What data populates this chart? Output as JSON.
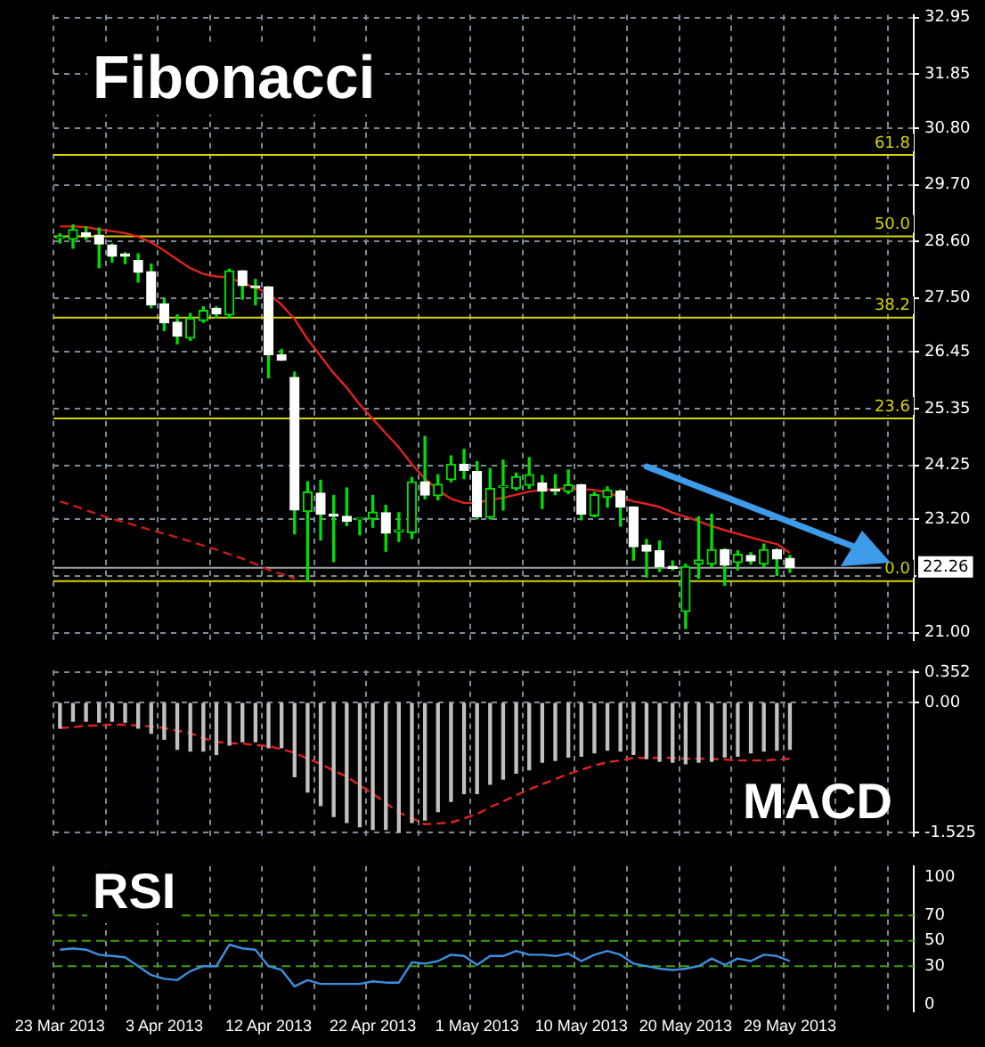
{
  "chart_data": [
    {
      "type": "candlestick",
      "title": "Fibonacci",
      "categories": [
        null,
        null,
        null,
        null,
        null,
        null,
        null,
        null,
        null,
        null,
        null,
        null,
        null,
        null,
        null,
        null,
        null,
        null,
        null,
        null,
        null,
        null,
        null,
        null,
        null,
        null,
        null,
        null,
        null,
        null,
        null,
        null,
        null,
        null,
        null,
        null,
        null,
        null,
        null,
        null,
        null,
        null,
        null,
        null,
        null,
        null,
        null,
        null,
        null,
        null,
        null,
        null,
        null,
        null,
        null,
        null,
        null,
        null,
        null,
        null,
        null,
        null,
        null,
        null,
        null,
        null
      ],
      "ohlc": [
        [
          28.66,
          28.75,
          28.57,
          28.66
        ],
        [
          28.64,
          28.92,
          28.47,
          28.83
        ],
        [
          28.77,
          28.88,
          28.64,
          28.69
        ],
        [
          28.72,
          28.86,
          28.09,
          28.55
        ],
        [
          28.53,
          28.55,
          28.2,
          28.31
        ],
        [
          28.36,
          28.38,
          28.17,
          28.31
        ],
        [
          28.23,
          28.36,
          27.81,
          28.0
        ],
        [
          28.01,
          28.16,
          27.31,
          27.37
        ],
        [
          27.39,
          27.48,
          26.87,
          27.02
        ],
        [
          27.03,
          27.17,
          26.61,
          26.76
        ],
        [
          26.72,
          27.2,
          26.68,
          27.11
        ],
        [
          27.06,
          27.33,
          27.03,
          27.26
        ],
        [
          27.3,
          27.33,
          27.12,
          27.19
        ],
        [
          27.17,
          28.06,
          27.12,
          28.03
        ],
        [
          28.03,
          28.03,
          27.48,
          27.74
        ],
        [
          27.72,
          27.86,
          27.37,
          27.7
        ],
        [
          27.72,
          27.72,
          25.95,
          26.4
        ],
        [
          26.4,
          26.5,
          26.29,
          26.29
        ],
        [
          25.96,
          26.06,
          22.92,
          23.38
        ],
        [
          23.35,
          23.93,
          22.0,
          23.73
        ],
        [
          23.71,
          23.96,
          22.8,
          23.3
        ],
        [
          23.3,
          23.66,
          22.38,
          23.26
        ],
        [
          23.26,
          23.81,
          23.08,
          23.16
        ],
        [
          23.19,
          23.21,
          22.9,
          23.19
        ],
        [
          23.21,
          23.66,
          23.05,
          23.34
        ],
        [
          23.33,
          23.47,
          22.58,
          22.93
        ],
        [
          22.96,
          23.33,
          22.77,
          22.96
        ],
        [
          22.94,
          24.01,
          22.83,
          23.93
        ],
        [
          23.93,
          24.81,
          23.6,
          23.67
        ],
        [
          23.66,
          24.07,
          23.58,
          23.88
        ],
        [
          23.97,
          24.43,
          23.93,
          24.27
        ],
        [
          24.27,
          24.56,
          23.99,
          24.15
        ],
        [
          24.13,
          24.32,
          23.21,
          23.25
        ],
        [
          23.24,
          24.19,
          23.21,
          23.8
        ],
        [
          23.82,
          24.35,
          23.38,
          23.82
        ],
        [
          23.8,
          24.1,
          23.77,
          24.03
        ],
        [
          23.86,
          24.4,
          23.8,
          24.07
        ],
        [
          23.91,
          24.05,
          23.41,
          23.75
        ],
        [
          23.77,
          24.07,
          23.68,
          23.75
        ],
        [
          23.74,
          24.16,
          23.7,
          23.87
        ],
        [
          23.87,
          23.88,
          23.19,
          23.3
        ],
        [
          23.27,
          23.72,
          23.25,
          23.68
        ],
        [
          23.63,
          23.83,
          23.44,
          23.77
        ],
        [
          23.75,
          23.77,
          23.07,
          23.44
        ],
        [
          23.44,
          23.44,
          22.41,
          22.67
        ],
        [
          22.7,
          22.81,
          22.08,
          22.58
        ],
        [
          22.59,
          22.78,
          22.19,
          22.28
        ],
        [
          22.28,
          22.39,
          22.22,
          22.25
        ],
        [
          21.41,
          22.33,
          21.08,
          22.28
        ],
        [
          22.33,
          23.25,
          22.06,
          22.41
        ],
        [
          22.33,
          23.3,
          22.28,
          22.61
        ],
        [
          22.61,
          22.63,
          21.92,
          22.31
        ],
        [
          22.36,
          22.59,
          22.22,
          22.52
        ],
        [
          22.5,
          22.55,
          22.33,
          22.39
        ],
        [
          22.33,
          22.72,
          22.28,
          22.61
        ],
        [
          22.61,
          22.63,
          22.11,
          22.43
        ],
        [
          22.44,
          22.5,
          22.17,
          22.26
        ],
        null,
        null,
        null,
        null,
        null,
        null,
        null,
        null,
        null
      ],
      "series": [
        {
          "type": "line",
          "color": "#e0231b",
          "values": [
            28.89,
            28.89,
            28.88,
            28.83,
            28.8,
            28.76,
            28.69,
            28.58,
            28.42,
            28.25,
            28.08,
            27.97,
            27.92,
            27.9,
            27.79,
            27.7,
            27.59,
            27.37,
            27.09,
            26.7,
            26.37,
            26.04,
            25.76,
            25.43,
            25.15,
            24.87,
            24.6,
            24.27,
            23.99,
            23.77,
            23.6,
            23.52,
            23.52,
            23.58,
            23.62,
            23.68,
            23.74,
            23.77,
            23.79,
            23.81,
            23.79,
            23.77,
            23.72,
            23.63,
            23.55,
            23.5,
            23.44,
            23.33,
            23.25,
            23.16,
            23.07,
            22.99,
            22.92,
            22.85,
            22.78,
            22.72,
            22.55,
            null,
            null,
            null,
            null,
            null,
            null,
            null,
            null,
            null
          ]
        },
        {
          "type": "line",
          "color": "#c81e10",
          "line_style": "dashed",
          "values": [
            23.55,
            23.47,
            23.38,
            23.29,
            23.21,
            23.14,
            23.07,
            22.99,
            22.92,
            22.85,
            22.77,
            22.69,
            22.61,
            22.52,
            22.44,
            22.33,
            22.22,
            22.14,
            22.05,
            null,
            null,
            null,
            null,
            null,
            null,
            null,
            null,
            null,
            null,
            null,
            null,
            null,
            null,
            null,
            null,
            null,
            null,
            null,
            null,
            null,
            null,
            null,
            null,
            null,
            null,
            null,
            null,
            null,
            null,
            null,
            null,
            null,
            null,
            null,
            null,
            null,
            null,
            null,
            null,
            null,
            null,
            null,
            null,
            null,
            null,
            null
          ]
        }
      ],
      "ylim": [
        20.85,
        33.0
      ],
      "yticks": [
        32.95,
        31.85,
        {
          "value": 30.8,
          "label": "30.80"
        },
        {
          "value": 29.7,
          "label": "29.70"
        },
        {
          "value": 28.6,
          "label": "28.60"
        },
        {
          "value": 27.5,
          "label": "27.50"
        },
        26.45,
        25.35,
        24.25,
        {
          "value": 23.2,
          "label": "23.20"
        },
        {
          "value": 22.1,
          "label": null
        },
        {
          "value": 21.0,
          "label": "21.00"
        }
      ],
      "ref_lines": [
        {
          "axis": "y",
          "value": 30.28,
          "color": "#d4d400"
        },
        {
          "axis": "y",
          "value": 28.7,
          "color": "#d4d400"
        },
        {
          "axis": "y",
          "value": 27.12,
          "color": "#d4d400"
        },
        {
          "axis": "y",
          "value": 25.16,
          "color": "#d4d400"
        },
        {
          "axis": "y",
          "value": 22.0,
          "color": "#d4d400"
        },
        {
          "axis": "y",
          "value": 22.26,
          "label": "22.26",
          "color": "#a0a4aa"
        }
      ],
      "annotations": [
        {
          "text": "61.8",
          "y": 30.28
        },
        {
          "text": "50.0",
          "y": 28.7
        },
        {
          "text": "38.2",
          "y": 27.12
        },
        {
          "text": "23.6",
          "y": 25.16
        },
        {
          "text": "0.0",
          "y": 22.0
        }
      ],
      "grid": true,
      "marker": "none",
      "tick_labels": "y"
    },
    {
      "type": "bar",
      "title": "MACD",
      "categories": [
        null,
        null,
        null,
        null,
        null,
        null,
        null,
        null,
        null,
        null,
        null,
        null,
        null,
        null,
        null,
        null,
        null,
        null,
        null,
        null,
        null,
        null,
        null,
        null,
        null,
        null,
        null,
        null,
        null,
        null,
        null,
        null,
        null,
        null,
        null,
        null,
        null,
        null,
        null,
        null,
        null,
        null,
        null,
        null,
        null,
        null,
        null,
        null,
        null,
        null,
        null,
        null,
        null,
        null,
        null,
        null,
        null,
        null,
        null,
        null,
        null,
        null,
        null,
        null,
        null,
        null
      ],
      "series": [
        {
          "type": "bar",
          "color": "#c0c0c0",
          "values": [
            -0.3,
            -0.22,
            -0.22,
            -0.23,
            -0.22,
            -0.23,
            -0.3,
            -0.36,
            -0.43,
            -0.55,
            -0.57,
            -0.57,
            -0.61,
            -0.5,
            -0.46,
            -0.46,
            -0.53,
            -0.53,
            -0.87,
            -1.05,
            -1.21,
            -1.34,
            -1.41,
            -1.46,
            -1.49,
            -1.49,
            -1.52,
            -1.41,
            -1.38,
            -1.28,
            -1.16,
            -1.07,
            -1.07,
            -0.96,
            -0.9,
            -0.83,
            -0.79,
            -0.7,
            -0.68,
            -0.64,
            -0.63,
            -0.59,
            -0.56,
            -0.57,
            -0.61,
            -0.66,
            -0.69,
            -0.7,
            -0.72,
            -0.7,
            -0.69,
            -0.64,
            -0.63,
            -0.59,
            -0.57,
            -0.56,
            -0.55,
            null,
            null,
            null,
            null,
            null,
            null,
            null,
            null,
            null
          ]
        },
        {
          "type": "line",
          "color": "#e0231b",
          "line_style": "dashed",
          "values": [
            -0.3,
            -0.29,
            -0.27,
            -0.27,
            -0.26,
            -0.26,
            -0.27,
            -0.28,
            -0.3,
            -0.33,
            -0.36,
            -0.42,
            -0.46,
            -0.48,
            -0.48,
            -0.5,
            -0.51,
            -0.55,
            -0.59,
            -0.66,
            -0.72,
            -0.8,
            -0.87,
            -0.97,
            -1.07,
            -1.18,
            -1.29,
            -1.36,
            -1.43,
            -1.42,
            -1.41,
            -1.36,
            -1.31,
            -1.23,
            -1.16,
            -1.09,
            -1.02,
            -0.96,
            -0.9,
            -0.84,
            -0.79,
            -0.74,
            -0.7,
            -0.68,
            -0.65,
            -0.65,
            -0.65,
            -0.65,
            -0.66,
            -0.66,
            -0.66,
            -0.67,
            -0.68,
            -0.68,
            -0.68,
            -0.67,
            -0.66,
            null,
            null,
            null,
            null,
            null,
            null,
            null,
            null,
            null
          ]
        }
      ],
      "ylim": [
        -1.57,
        0.38
      ],
      "yticks": [
        0.352,
        {
          "value": 0,
          "label": "0.00"
        },
        -1.525
      ],
      "grid": true,
      "marker": "none",
      "tick_labels": "y"
    },
    {
      "type": "line",
      "title": "RSI",
      "categories": [
        "23 Mar 2013",
        null,
        null,
        null,
        null,
        null,
        null,
        null,
        "3 Apr 2013",
        null,
        null,
        null,
        null,
        null,
        null,
        null,
        "12 Apr 2013",
        null,
        null,
        null,
        null,
        null,
        null,
        null,
        "22 Apr 2013",
        null,
        null,
        null,
        null,
        null,
        null,
        null,
        "1 May 2013",
        null,
        null,
        null,
        null,
        null,
        null,
        null,
        "10 May 2013",
        null,
        null,
        null,
        null,
        null,
        null,
        null,
        "20 May 2013",
        null,
        null,
        null,
        null,
        null,
        null,
        null,
        "29 May 2013",
        null,
        null,
        null,
        null,
        null,
        null,
        null,
        null,
        null
      ],
      "series": [
        {
          "color": "#3d8fe0",
          "values": [
            43,
            44,
            43,
            39,
            38,
            37,
            30,
            23,
            20,
            19,
            26,
            30,
            30,
            47,
            44,
            43,
            30,
            27,
            14,
            19,
            16,
            16,
            16,
            16,
            18,
            17,
            17,
            33,
            32,
            34,
            39,
            38,
            31,
            38,
            38,
            42,
            39,
            39,
            38,
            40,
            34,
            39,
            42,
            39,
            32,
            30,
            28,
            27,
            28,
            30,
            36,
            31,
            36,
            34,
            39,
            38,
            34,
            null,
            null,
            null,
            null,
            null,
            null,
            null,
            null,
            null
          ]
        }
      ],
      "ylim": [
        -6,
        109
      ],
      "yticks": [
        0,
        30,
        50,
        70,
        100
      ],
      "ref_lines": [
        {
          "axis": "y",
          "value": 70,
          "color": "#3ca000",
          "line_style": "dashed"
        },
        {
          "axis": "y",
          "value": 50,
          "color": "#3ca000",
          "line_style": "dashed"
        },
        {
          "axis": "y",
          "value": 30,
          "color": "#3ca000",
          "line_style": "dashed"
        }
      ],
      "grid": "x",
      "marker": "none"
    }
  ]
}
